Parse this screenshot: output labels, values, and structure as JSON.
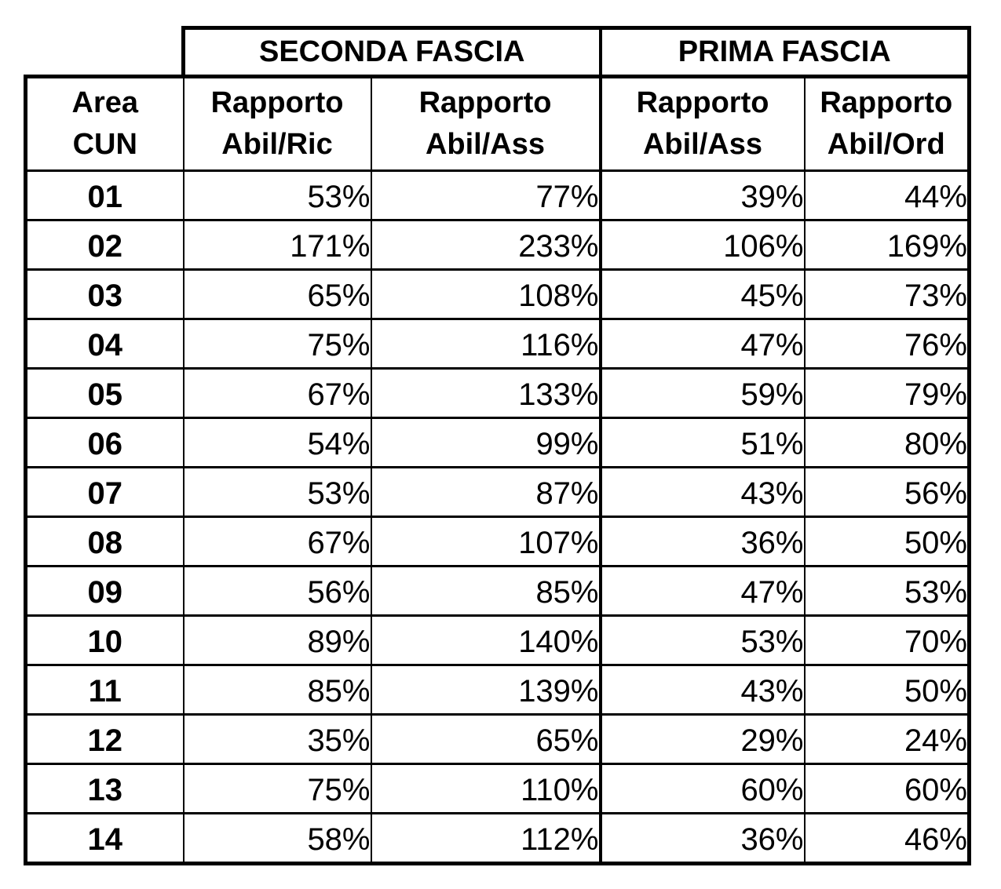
{
  "table": {
    "group_headers": [
      {
        "label": "SECONDA FASCIA"
      },
      {
        "label": "PRIMA FASCIA"
      }
    ],
    "columns": [
      {
        "label_line1": "Area",
        "label_line2": "CUN"
      },
      {
        "label_line1": "Rapporto",
        "label_line2": "Abil/Ric"
      },
      {
        "label_line1": "Rapporto",
        "label_line2": "Abil/Ass"
      },
      {
        "label_line1": "Rapporto",
        "label_line2": "Abil/Ass"
      },
      {
        "label_line1": "Rapporto",
        "label_line2": "Abil/Ord"
      }
    ],
    "rows": [
      {
        "area": "01",
        "sf_abil_ric": "53%",
        "sf_abil_ass": "77%",
        "pf_abil_ass": "39%",
        "pf_abil_ord": "44%"
      },
      {
        "area": "02",
        "sf_abil_ric": "171%",
        "sf_abil_ass": "233%",
        "pf_abil_ass": "106%",
        "pf_abil_ord": "169%"
      },
      {
        "area": "03",
        "sf_abil_ric": "65%",
        "sf_abil_ass": "108%",
        "pf_abil_ass": "45%",
        "pf_abil_ord": "73%"
      },
      {
        "area": "04",
        "sf_abil_ric": "75%",
        "sf_abil_ass": "116%",
        "pf_abil_ass": "47%",
        "pf_abil_ord": "76%"
      },
      {
        "area": "05",
        "sf_abil_ric": "67%",
        "sf_abil_ass": "133%",
        "pf_abil_ass": "59%",
        "pf_abil_ord": "79%"
      },
      {
        "area": "06",
        "sf_abil_ric": "54%",
        "sf_abil_ass": "99%",
        "pf_abil_ass": "51%",
        "pf_abil_ord": "80%"
      },
      {
        "area": "07",
        "sf_abil_ric": "53%",
        "sf_abil_ass": "87%",
        "pf_abil_ass": "43%",
        "pf_abil_ord": "56%"
      },
      {
        "area": "08",
        "sf_abil_ric": "67%",
        "sf_abil_ass": "107%",
        "pf_abil_ass": "36%",
        "pf_abil_ord": "50%"
      },
      {
        "area": "09",
        "sf_abil_ric": "56%",
        "sf_abil_ass": "85%",
        "pf_abil_ass": "47%",
        "pf_abil_ord": "53%"
      },
      {
        "area": "10",
        "sf_abil_ric": "89%",
        "sf_abil_ass": "140%",
        "pf_abil_ass": "53%",
        "pf_abil_ord": "70%"
      },
      {
        "area": "11",
        "sf_abil_ric": "85%",
        "sf_abil_ass": "139%",
        "pf_abil_ass": "43%",
        "pf_abil_ord": "50%"
      },
      {
        "area": "12",
        "sf_abil_ric": "35%",
        "sf_abil_ass": "65%",
        "pf_abil_ass": "29%",
        "pf_abil_ord": "24%"
      },
      {
        "area": "13",
        "sf_abil_ric": "75%",
        "sf_abil_ass": "110%",
        "pf_abil_ass": "60%",
        "pf_abil_ord": "60%"
      },
      {
        "area": "14",
        "sf_abil_ric": "58%",
        "sf_abil_ass": "112%",
        "pf_abil_ass": "36%",
        "pf_abil_ord": "46%"
      }
    ],
    "colors": {
      "border": "#000000",
      "text": "#000000",
      "background": "#ffffff"
    }
  }
}
